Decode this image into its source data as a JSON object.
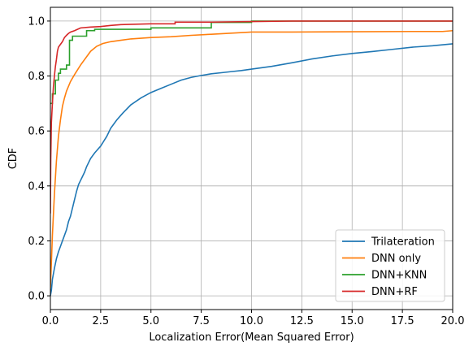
{
  "chart_data": {
    "type": "line",
    "title": "",
    "xlabel": "Localization Error(Mean Squared Error)",
    "ylabel": "CDF",
    "xlim": [
      0,
      20
    ],
    "ylim": [
      -0.05,
      1.05
    ],
    "x_ticks": [
      0,
      2.5,
      5,
      7.5,
      10,
      12.5,
      15,
      17.5,
      20
    ],
    "x_tick_labels": [
      "0.0",
      "2.5",
      "5.0",
      "7.5",
      "10.0",
      "12.5",
      "15.0",
      "17.5",
      "20.0"
    ],
    "y_ticks": [
      0,
      0.2,
      0.4,
      0.6,
      0.8,
      1.0
    ],
    "y_tick_labels": [
      "0.0",
      "0.2",
      "0.4",
      "0.6",
      "0.8",
      "1.0"
    ],
    "grid": true,
    "legend_position": "lower-right",
    "series": [
      {
        "name": "Trilateration",
        "color": "#1f77b4",
        "step": false,
        "points": [
          [
            0,
            0
          ],
          [
            0.05,
            0.02
          ],
          [
            0.1,
            0.06
          ],
          [
            0.2,
            0.1
          ],
          [
            0.3,
            0.135
          ],
          [
            0.4,
            0.16
          ],
          [
            0.5,
            0.18
          ],
          [
            0.6,
            0.2
          ],
          [
            0.7,
            0.22
          ],
          [
            0.8,
            0.24
          ],
          [
            0.9,
            0.27
          ],
          [
            1.0,
            0.29
          ],
          [
            1.1,
            0.32
          ],
          [
            1.2,
            0.35
          ],
          [
            1.3,
            0.38
          ],
          [
            1.4,
            0.405
          ],
          [
            1.5,
            0.42
          ],
          [
            1.6,
            0.435
          ],
          [
            1.7,
            0.45
          ],
          [
            1.8,
            0.47
          ],
          [
            2.0,
            0.5
          ],
          [
            2.2,
            0.52
          ],
          [
            2.5,
            0.545
          ],
          [
            2.8,
            0.58
          ],
          [
            3.0,
            0.61
          ],
          [
            3.3,
            0.64
          ],
          [
            3.6,
            0.665
          ],
          [
            4.0,
            0.695
          ],
          [
            4.5,
            0.72
          ],
          [
            5.0,
            0.74
          ],
          [
            5.5,
            0.755
          ],
          [
            6.0,
            0.77
          ],
          [
            6.5,
            0.785
          ],
          [
            7.0,
            0.795
          ],
          [
            7.5,
            0.802
          ],
          [
            8.0,
            0.808
          ],
          [
            8.5,
            0.812
          ],
          [
            9.0,
            0.816
          ],
          [
            9.5,
            0.82
          ],
          [
            10.0,
            0.825
          ],
          [
            11.0,
            0.835
          ],
          [
            12.0,
            0.848
          ],
          [
            13.0,
            0.862
          ],
          [
            14.0,
            0.873
          ],
          [
            15.0,
            0.882
          ],
          [
            16.0,
            0.889
          ],
          [
            17.0,
            0.897
          ],
          [
            18.0,
            0.905
          ],
          [
            19.0,
            0.91
          ],
          [
            20.0,
            0.917
          ]
        ]
      },
      {
        "name": "DNN only",
        "color": "#ff7f0e",
        "step": false,
        "points": [
          [
            0,
            0.03
          ],
          [
            0.05,
            0.12
          ],
          [
            0.1,
            0.22
          ],
          [
            0.2,
            0.37
          ],
          [
            0.3,
            0.49
          ],
          [
            0.4,
            0.58
          ],
          [
            0.5,
            0.64
          ],
          [
            0.6,
            0.69
          ],
          [
            0.7,
            0.72
          ],
          [
            0.8,
            0.745
          ],
          [
            1.0,
            0.78
          ],
          [
            1.2,
            0.805
          ],
          [
            1.5,
            0.84
          ],
          [
            1.8,
            0.87
          ],
          [
            2.0,
            0.89
          ],
          [
            2.3,
            0.908
          ],
          [
            2.6,
            0.918
          ],
          [
            3.0,
            0.925
          ],
          [
            3.5,
            0.93
          ],
          [
            4.0,
            0.935
          ],
          [
            5.0,
            0.94
          ],
          [
            6.0,
            0.943
          ],
          [
            7.0,
            0.948
          ],
          [
            8.0,
            0.952
          ],
          [
            9.0,
            0.956
          ],
          [
            10.0,
            0.96
          ],
          [
            12.0,
            0.96
          ],
          [
            15.0,
            0.961
          ],
          [
            18.0,
            0.962
          ],
          [
            19.5,
            0.962
          ],
          [
            20.0,
            0.965
          ]
        ]
      },
      {
        "name": "DNN+KNN",
        "color": "#2ca02c",
        "step": true,
        "points": [
          [
            0,
            0.7
          ],
          [
            0.1,
            0.7
          ],
          [
            0.1,
            0.735
          ],
          [
            0.25,
            0.735
          ],
          [
            0.25,
            0.785
          ],
          [
            0.4,
            0.785
          ],
          [
            0.4,
            0.81
          ],
          [
            0.5,
            0.81
          ],
          [
            0.5,
            0.825
          ],
          [
            0.8,
            0.825
          ],
          [
            0.8,
            0.84
          ],
          [
            0.95,
            0.84
          ],
          [
            0.95,
            0.93
          ],
          [
            1.1,
            0.93
          ],
          [
            1.1,
            0.945
          ],
          [
            1.8,
            0.945
          ],
          [
            1.8,
            0.965
          ],
          [
            2.2,
            0.965
          ],
          [
            2.2,
            0.97
          ],
          [
            5.0,
            0.97
          ],
          [
            5.0,
            0.975
          ],
          [
            8.0,
            0.975
          ],
          [
            8.0,
            0.995
          ],
          [
            10.0,
            0.995
          ],
          [
            10.0,
            1.0
          ],
          [
            20.0,
            1.0
          ]
        ]
      },
      {
        "name": "DNN+RF",
        "color": "#d62728",
        "step": false,
        "points": [
          [
            0,
            0.3
          ],
          [
            0.02,
            0.5
          ],
          [
            0.05,
            0.63
          ],
          [
            0.1,
            0.7
          ],
          [
            0.15,
            0.76
          ],
          [
            0.2,
            0.8
          ],
          [
            0.25,
            0.835
          ],
          [
            0.3,
            0.86
          ],
          [
            0.35,
            0.89
          ],
          [
            0.4,
            0.905
          ],
          [
            0.5,
            0.915
          ],
          [
            0.6,
            0.925
          ],
          [
            0.7,
            0.94
          ],
          [
            0.8,
            0.948
          ],
          [
            0.9,
            0.955
          ],
          [
            1.0,
            0.96
          ],
          [
            1.2,
            0.965
          ],
          [
            1.5,
            0.975
          ],
          [
            2.0,
            0.978
          ],
          [
            2.5,
            0.98
          ],
          [
            3.0,
            0.984
          ],
          [
            3.5,
            0.987
          ],
          [
            4.0,
            0.988
          ],
          [
            5.0,
            0.99
          ],
          [
            6.2,
            0.99
          ],
          [
            6.2,
            0.996
          ],
          [
            8.0,
            0.996
          ],
          [
            10.0,
            0.998
          ],
          [
            12.0,
            1.0
          ],
          [
            20.0,
            1.0
          ]
        ]
      }
    ]
  }
}
